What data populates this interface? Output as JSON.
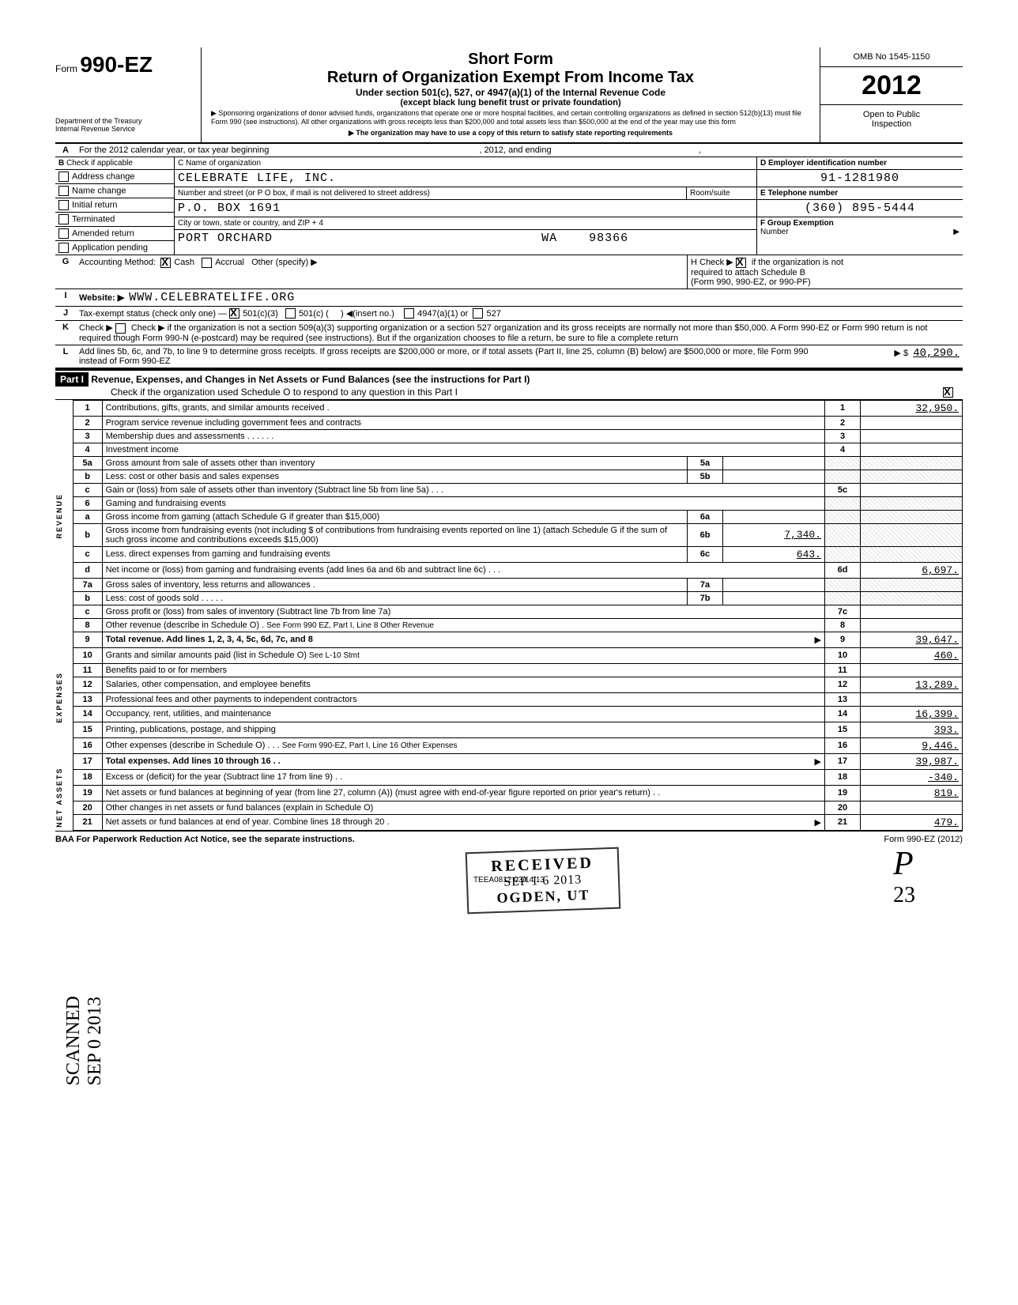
{
  "form": {
    "form_word": "Form",
    "form_number": "990-EZ",
    "dept1": "Department of the Treasury",
    "dept2": "Internal Revenue Service",
    "short": "Short Form",
    "title": "Return of Organization Exempt From Income Tax",
    "sub1": "Under section 501(c), 527, or 4947(a)(1) of the Internal Revenue Code",
    "sub2": "(except black lung benefit trust or private foundation)",
    "fine1": "▶ Sponsoring organizations of donor advised funds, organizations that operate one or more hospital facilities, and certain controlling organizations as defined in section 512(b)(13) must file Form 990 (see instructions). All other organizations with gross receipts less than $200,000 and total assets less than $500,000 at the end of the year may use this form",
    "fine2": "▶ The organization may have to use a copy of this return to satisfy state reporting requirements",
    "omb": "OMB No 1545-1150",
    "year": "2012",
    "open1": "Open to Public",
    "open2": "Inspection"
  },
  "headerA": {
    "label": "A",
    "text": "For the 2012 calendar year, or tax year beginning",
    "text2": ", 2012, and ending",
    "text3": ","
  },
  "checkboxes": {
    "heading": "Check if applicable",
    "address_change": "Address change",
    "name_change": "Name change",
    "initial_return": "Initial return",
    "terminated": "Terminated",
    "amended_return": "Amended return",
    "application_pending": "Application pending"
  },
  "org": {
    "name_label": "C  Name of organization",
    "name": "CELEBRATE LIFE, INC.",
    "street_label": "Number and street (or P O  box, if mail is not delivered to street address)",
    "room_label": "Room/suite",
    "street": "P.O. BOX 1691",
    "city_label": "City or town, state or country, and ZIP + 4",
    "city": "PORT ORCHARD",
    "state": "WA",
    "zip": "98366"
  },
  "ids": {
    "d_label": "D  Employer identification number",
    "d_value": "91-1281980",
    "e_label": "E   Telephone number",
    "e_value": "(360) 895-5444",
    "f_label": "F  Group Exemption",
    "f_label2": "Number",
    "f_arrow": "▶"
  },
  "lineG": {
    "label": "G",
    "text": "Accounting Method:",
    "cash": "Cash",
    "accrual": "Accrual",
    "other": "Other (specify) ▶"
  },
  "lineH": {
    "text1": "H  Check ▶",
    "text2": "if the organization is not",
    "text3": "required to attach Schedule B",
    "text4": "(Form 990, 990-EZ, or 990-PF)"
  },
  "lineI": {
    "label": "I",
    "text": "Website: ▶",
    "value": "WWW.CELEBRATELIFE.ORG"
  },
  "lineJ": {
    "label": "J",
    "text": "Tax-exempt status (check only one) —",
    "opt1": "501(c)(3)",
    "opt2": "501(c) (",
    "opt2b": ")  ◀(insert no.)",
    "opt3": "4947(a)(1) or",
    "opt4": "527"
  },
  "lineK": {
    "label": "K",
    "text": "Check ▶        if the organization is not a section 509(a)(3) supporting organization or a section 527 organization and its gross receipts are normally not more than $50,000. A Form 990-EZ or Form 990 return is not required though Form 990-N (e-postcard) may be required (see instructions). But if the organization chooses to file a return, be sure to file a complete return"
  },
  "lineL": {
    "label": "L",
    "text": "Add lines 5b, 6c, and 7b, to line 9 to determine gross receipts. If gross receipts are $200,000 or more, or if total assets (Part II, line 25, column (B) below) are $500,000 or more, file Form 990 instead of Form 990-EZ",
    "arrow": "▶ $",
    "value": "40,290."
  },
  "part1": {
    "label": "Part I",
    "title": "Revenue, Expenses, and Changes in Net Assets or Fund Balances (see the instructions for Part I)",
    "check_text": "Check if the organization used Schedule O to respond to any question in this Part I",
    "checked": true
  },
  "sideLabels": {
    "revenue": "REVENUE",
    "expenses": "EXPENSES",
    "netassets": "NET ASSETS"
  },
  "lines": [
    {
      "n": "1",
      "desc": "Contributions, gifts, grants, and similar amounts received  .",
      "col": "1",
      "amt": "32,950."
    },
    {
      "n": "2",
      "desc": "Program service revenue including government fees and contracts",
      "col": "2",
      "amt": ""
    },
    {
      "n": "3",
      "desc": "Membership dues and assessments    . . .                . . .",
      "col": "3",
      "amt": ""
    },
    {
      "n": "4",
      "desc": "Investment income",
      "col": "4",
      "amt": ""
    },
    {
      "n": "5a",
      "desc": "Gross amount from sale of assets other than inventory",
      "mid": "5a",
      "midamt": ""
    },
    {
      "n": "b",
      "desc": "Less: cost or other basis and sales expenses",
      "mid": "5b",
      "midamt": ""
    },
    {
      "n": "c",
      "desc": "Gain or (loss) from sale of assets other than inventory (Subtract line 5b from line 5a)     . . .",
      "col": "5c",
      "amt": ""
    },
    {
      "n": "6",
      "desc": "Gaming and fundraising events",
      "shadedcol": true
    },
    {
      "n": "a",
      "desc": "Gross income from gaming (attach Schedule G if greater than $15,000)",
      "mid": "6a",
      "midamt": ""
    },
    {
      "n": "b",
      "desc": "Gross income from fundraising events (not including  $                            of contributions from fundraising events reported on line 1) (attach Schedule G if the sum of such gross income and contributions exceeds $15,000)",
      "mid": "6b",
      "midamt": "7,340."
    },
    {
      "n": "c",
      "desc": "Less. direct expenses from gaming and fundraising events",
      "mid": "6c",
      "midamt": "643."
    },
    {
      "n": "d",
      "desc": "Net income or (loss) from gaming and fundraising events (add lines 6a and 6b and subtract line 6c)    .       . .",
      "col": "6d",
      "amt": "6,697."
    },
    {
      "n": "7a",
      "desc": "Gross sales of inventory, less returns and allowances                .",
      "mid": "7a",
      "midamt": ""
    },
    {
      "n": "b",
      "desc": "Less: cost of goods sold      .               . . . .",
      "mid": "7b",
      "midamt": "",
      "shadedcol": true
    },
    {
      "n": "c",
      "desc": "Gross profit or (loss) from sales of inventory (Subtract line 7b from line 7a)",
      "col": "7c",
      "amt": ""
    },
    {
      "n": "8",
      "desc": "Other revenue (describe in Schedule O) .",
      "note": "See Form 990 EZ, Part I, Line 8 Other Revenue",
      "col": "8",
      "amt": ""
    },
    {
      "n": "9",
      "desc": "Total revenue. Add lines 1, 2, 3, 4, 5c, 6d, 7c, and 8",
      "bold": true,
      "arrow": true,
      "col": "9",
      "amt": "39,647."
    },
    {
      "n": "10",
      "desc": "Grants and similar amounts paid (list in Schedule O)",
      "note": "See L-10 Stmt",
      "col": "10",
      "amt": "460."
    },
    {
      "n": "11",
      "desc": "Benefits paid to or for members",
      "col": "11",
      "amt": ""
    },
    {
      "n": "12",
      "desc": "Salaries, other compensation, and employee benefits",
      "col": "12",
      "amt": "13,289."
    },
    {
      "n": "13",
      "desc": "Professional fees and other payments to independent contractors",
      "col": "13",
      "amt": ""
    },
    {
      "n": "14",
      "desc": "Occupancy, rent, utilities, and maintenance",
      "col": "14",
      "amt": "16,399."
    },
    {
      "n": "15",
      "desc": "Printing, publications, postage, and shipping",
      "col": "15",
      "amt": "393."
    },
    {
      "n": "16",
      "desc": "Other expenses (describe in Schedule O)  .               . .",
      "note": "See Form 990-EZ, Part I, Line 16 Other Expenses",
      "col": "16",
      "amt": "9,446."
    },
    {
      "n": "17",
      "desc": "Total expenses. Add lines 10 through 16   . .",
      "bold": true,
      "arrow": true,
      "col": "17",
      "amt": "39,987."
    },
    {
      "n": "18",
      "desc": "Excess or (deficit) for the year (Subtract line 17 from line 9)     . .",
      "col": "18",
      "amt": "-340."
    },
    {
      "n": "19",
      "desc": "Net assets or fund balances at beginning of year (from line 27, column (A)) (must agree with end-of-year figure reported on prior year's return)                                     . .",
      "col": "19",
      "amt": "819.",
      "shadedabove": true
    },
    {
      "n": "20",
      "desc": "Other changes in net assets or fund balances (explain in Schedule O)",
      "col": "20",
      "amt": ""
    },
    {
      "n": "21",
      "desc": "Net assets or fund balances at end of year. Combine lines 18 through 20                .",
      "arrow": true,
      "col": "21",
      "amt": "479."
    }
  ],
  "footer": {
    "left": "BAA  For Paperwork Reduction Act Notice, see the separate instructions.",
    "mid": "TEEA0812   03/14/13",
    "right": "Form 990-EZ (2012)"
  },
  "stamps": {
    "received": "RECEIVED",
    "date": "SEP 1 6 2013",
    "city": "OGDEN, UT",
    "side": "SCANNED SEP 0 2013",
    "hand_p": "P",
    "hand_num": "23"
  }
}
